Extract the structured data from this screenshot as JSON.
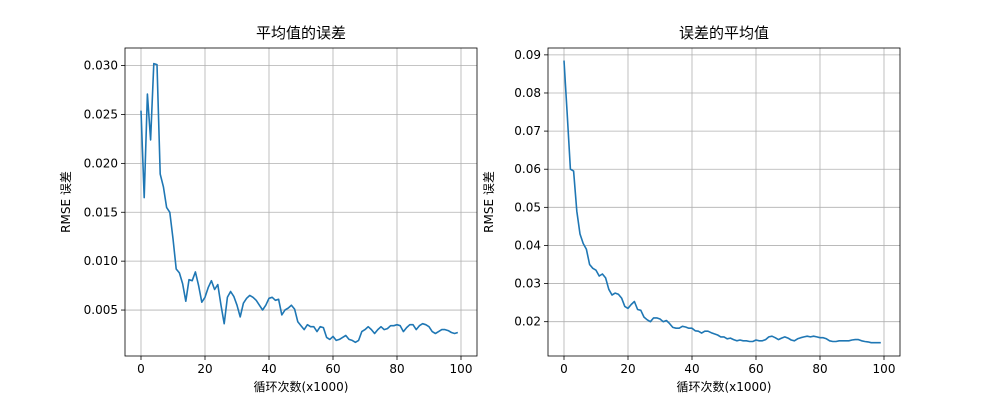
{
  "chart_data": [
    {
      "type": "line",
      "title": "平均值的误差",
      "xlabel": "循环次数(x1000)",
      "ylabel": "RMSE 误差",
      "xlim": [
        -5,
        105
      ],
      "ylim": [
        0.0003,
        0.0318
      ],
      "xticks": [
        0,
        20,
        40,
        60,
        80,
        100
      ],
      "yticks": [
        0.005,
        0.01,
        0.015,
        0.02,
        0.025,
        0.03
      ],
      "yticklabels": [
        "0.005",
        "0.010",
        "0.015",
        "0.020",
        "0.025",
        "0.030"
      ],
      "grid": true,
      "color": "#1f77b4",
      "x": [
        0,
        1,
        2,
        3,
        4,
        5,
        6,
        7,
        8,
        9,
        10,
        11,
        12,
        13,
        14,
        15,
        16,
        17,
        18,
        19,
        20,
        21,
        22,
        23,
        24,
        25,
        26,
        27,
        28,
        29,
        30,
        31,
        32,
        33,
        34,
        35,
        36,
        37,
        38,
        39,
        40,
        41,
        42,
        43,
        44,
        45,
        46,
        47,
        48,
        49,
        50,
        51,
        52,
        53,
        54,
        55,
        56,
        57,
        58,
        59,
        60,
        61,
        62,
        63,
        64,
        65,
        66,
        67,
        68,
        69,
        70,
        71,
        72,
        73,
        74,
        75,
        76,
        77,
        78,
        79,
        80,
        81,
        82,
        83,
        84,
        85,
        86,
        87,
        88,
        89,
        90,
        91,
        92,
        93,
        94,
        95,
        96,
        97,
        98,
        99
      ],
      "y": [
        0.0254,
        0.0165,
        0.0271,
        0.0224,
        0.0302,
        0.0301,
        0.0189,
        0.0176,
        0.0155,
        0.015,
        0.0123,
        0.0092,
        0.0088,
        0.0077,
        0.0059,
        0.0081,
        0.008,
        0.0089,
        0.0075,
        0.0058,
        0.0063,
        0.0073,
        0.008,
        0.0071,
        0.0076,
        0.0055,
        0.0036,
        0.0063,
        0.0069,
        0.0064,
        0.0055,
        0.0043,
        0.0057,
        0.0062,
        0.0065,
        0.0063,
        0.006,
        0.0055,
        0.005,
        0.0055,
        0.0062,
        0.0063,
        0.006,
        0.0061,
        0.0045,
        0.005,
        0.0052,
        0.0055,
        0.0051,
        0.0038,
        0.0034,
        0.003,
        0.0035,
        0.0033,
        0.0033,
        0.0028,
        0.0033,
        0.0032,
        0.0022,
        0.002,
        0.0023,
        0.0019,
        0.002,
        0.0022,
        0.0024,
        0.002,
        0.0019,
        0.0017,
        0.0019,
        0.0028,
        0.003,
        0.0033,
        0.003,
        0.0026,
        0.003,
        0.0033,
        0.003,
        0.0031,
        0.0034,
        0.0034,
        0.0035,
        0.0034,
        0.0028,
        0.0032,
        0.0035,
        0.0035,
        0.003,
        0.0034,
        0.0036,
        0.0035,
        0.0033,
        0.0028,
        0.0026,
        0.0028,
        0.003,
        0.003,
        0.0029,
        0.0027,
        0.0026,
        0.0027
      ]
    },
    {
      "type": "line",
      "title": "误差的平均值",
      "xlabel": "循环次数(x1000)",
      "ylabel": "RMSE 误差",
      "xlim": [
        -5,
        105
      ],
      "ylim": [
        0.011,
        0.0918
      ],
      "xticks": [
        0,
        20,
        40,
        60,
        80,
        100
      ],
      "yticks": [
        0.02,
        0.03,
        0.04,
        0.05,
        0.06,
        0.07,
        0.08,
        0.09
      ],
      "yticklabels": [
        "0.02",
        "0.03",
        "0.04",
        "0.05",
        "0.06",
        "0.07",
        "0.08",
        "0.09"
      ],
      "grid": true,
      "color": "#1f77b4",
      "x": [
        0,
        1,
        2,
        3,
        4,
        5,
        6,
        7,
        8,
        9,
        10,
        11,
        12,
        13,
        14,
        15,
        16,
        17,
        18,
        19,
        20,
        21,
        22,
        23,
        24,
        25,
        26,
        27,
        28,
        29,
        30,
        31,
        32,
        33,
        34,
        35,
        36,
        37,
        38,
        39,
        40,
        41,
        42,
        43,
        44,
        45,
        46,
        47,
        48,
        49,
        50,
        51,
        52,
        53,
        54,
        55,
        56,
        57,
        58,
        59,
        60,
        61,
        62,
        63,
        64,
        65,
        66,
        67,
        68,
        69,
        70,
        71,
        72,
        73,
        74,
        75,
        76,
        77,
        78,
        79,
        80,
        81,
        82,
        83,
        84,
        85,
        86,
        87,
        88,
        89,
        90,
        91,
        92,
        93,
        94,
        95,
        96,
        97,
        98,
        99
      ],
      "y": [
        0.0885,
        0.0745,
        0.06,
        0.0595,
        0.049,
        0.043,
        0.0405,
        0.039,
        0.035,
        0.034,
        0.0335,
        0.032,
        0.0325,
        0.0315,
        0.0285,
        0.027,
        0.0275,
        0.0272,
        0.0262,
        0.024,
        0.0235,
        0.0245,
        0.0253,
        0.0232,
        0.023,
        0.0212,
        0.0205,
        0.02,
        0.021,
        0.021,
        0.0207,
        0.02,
        0.0203,
        0.0195,
        0.0185,
        0.0183,
        0.0183,
        0.0188,
        0.0186,
        0.0183,
        0.0183,
        0.0176,
        0.0175,
        0.017,
        0.0175,
        0.0175,
        0.0171,
        0.0168,
        0.0165,
        0.016,
        0.016,
        0.0155,
        0.0157,
        0.0153,
        0.015,
        0.0152,
        0.015,
        0.015,
        0.0148,
        0.0148,
        0.0152,
        0.015,
        0.015,
        0.0153,
        0.016,
        0.0162,
        0.0158,
        0.0153,
        0.0157,
        0.016,
        0.0157,
        0.0152,
        0.015,
        0.0155,
        0.0158,
        0.016,
        0.0162,
        0.016,
        0.0162,
        0.016,
        0.0158,
        0.0158,
        0.0155,
        0.015,
        0.0148,
        0.0148,
        0.015,
        0.015,
        0.015,
        0.015,
        0.0152,
        0.0153,
        0.0153,
        0.015,
        0.0148,
        0.0147,
        0.0145,
        0.0145,
        0.0145,
        0.0145
      ]
    }
  ]
}
